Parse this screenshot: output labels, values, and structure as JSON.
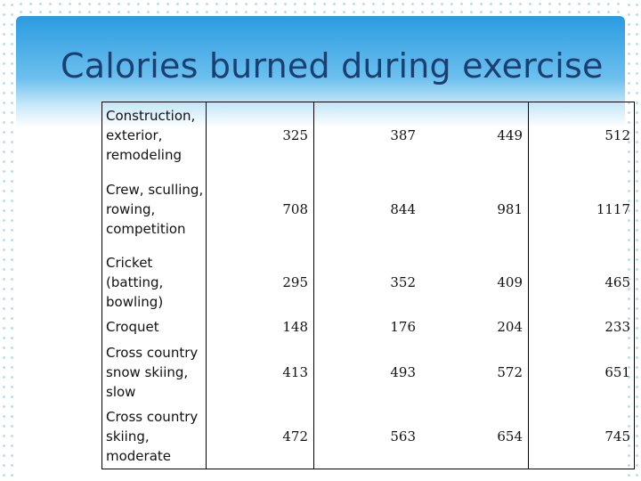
{
  "title": "Calories burned during exercise",
  "rows": [
    {
      "activity": "Construction, exterior, remodeling",
      "values": [
        "325",
        "387",
        "449",
        "512"
      ]
    },
    {
      "activity": "Crew, sculling, rowing, competition",
      "values": [
        "708",
        "844",
        "981",
        "1117"
      ]
    },
    {
      "activity": "Cricket (batting, bowling)",
      "values": [
        "295",
        "352",
        "409",
        "465"
      ]
    },
    {
      "activity": "Croquet",
      "values": [
        "148",
        "176",
        "204",
        "233"
      ]
    },
    {
      "activity": "Cross country snow skiing, slow",
      "values": [
        "413",
        "493",
        "572",
        "651"
      ]
    },
    {
      "activity": "Cross country skiing, moderate",
      "values": [
        "472",
        "563",
        "654",
        "745"
      ]
    }
  ],
  "colors": {
    "title": "#1a3f73",
    "header_blue": "#2a9be0"
  }
}
